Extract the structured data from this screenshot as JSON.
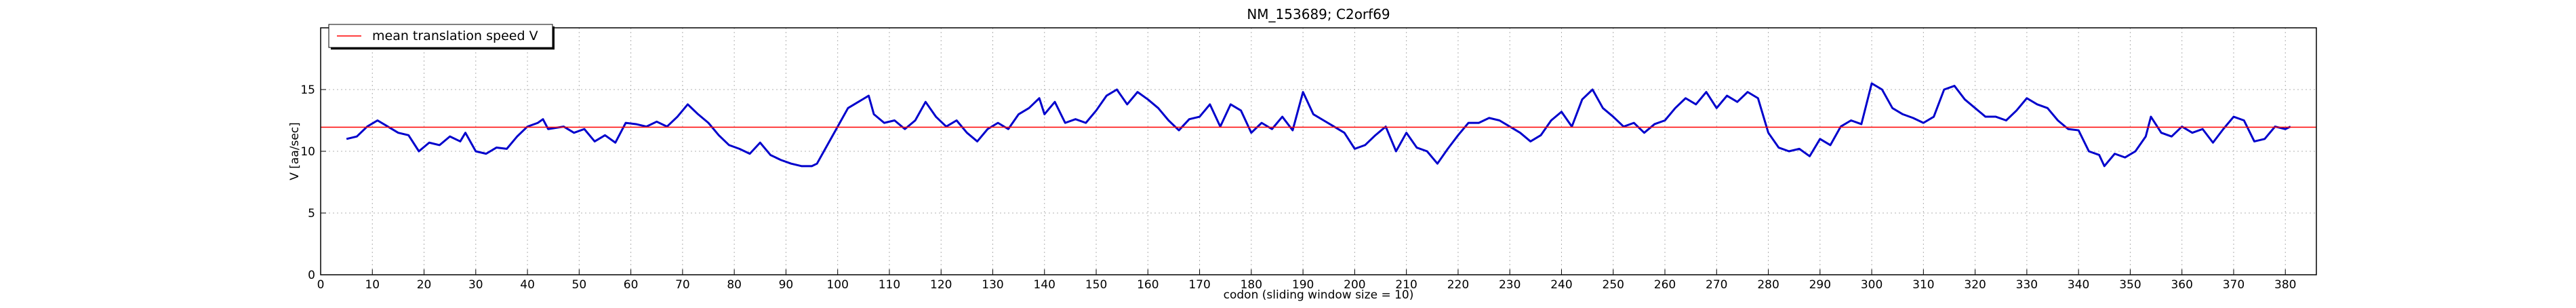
{
  "chart_data": {
    "type": "line",
    "title": "NM_153689; C2orf69",
    "x_label": "codon  (sliding window size = 10)",
    "y_label": "V [aa/sec]",
    "xlim": [
      0,
      386
    ],
    "ylim": [
      0,
      20
    ],
    "xticks": [
      0,
      10,
      20,
      30,
      40,
      50,
      60,
      70,
      80,
      90,
      100,
      110,
      120,
      130,
      140,
      150,
      160,
      170,
      180,
      190,
      200,
      210,
      220,
      230,
      240,
      250,
      260,
      270,
      280,
      290,
      300,
      310,
      320,
      330,
      340,
      350,
      360,
      370,
      380
    ],
    "yticks": [
      0,
      5,
      10,
      15
    ],
    "grid": true,
    "legend": "upper left",
    "x": [
      5,
      7,
      9,
      11,
      13,
      15,
      17,
      19,
      21,
      23,
      25,
      27,
      28,
      30,
      32,
      34,
      36,
      38,
      40,
      42,
      43,
      44,
      47,
      49,
      51,
      53,
      55,
      57,
      59,
      61,
      63,
      65,
      67,
      69,
      71,
      73,
      75,
      77,
      79,
      81,
      83,
      85,
      87,
      89,
      91,
      93,
      95,
      96,
      98,
      100,
      102,
      104,
      106,
      107,
      109,
      111,
      113,
      115,
      117,
      119,
      121,
      123,
      125,
      127,
      129,
      131,
      133,
      135,
      137,
      139,
      140,
      142,
      144,
      146,
      148,
      150,
      152,
      154,
      156,
      158,
      160,
      162,
      164,
      166,
      168,
      170,
      172,
      174,
      176,
      178,
      180,
      182,
      184,
      186,
      188,
      190,
      192,
      194,
      196,
      198,
      200,
      202,
      204,
      206,
      208,
      210,
      212,
      214,
      216,
      218,
      220,
      222,
      224,
      226,
      228,
      230,
      232,
      234,
      236,
      238,
      240,
      242,
      244,
      246,
      248,
      250,
      252,
      254,
      256,
      258,
      260,
      262,
      264,
      266,
      268,
      270,
      272,
      274,
      276,
      278,
      280,
      282,
      284,
      286,
      288,
      290,
      292,
      294,
      296,
      298,
      300,
      302,
      304,
      306,
      308,
      310,
      312,
      314,
      316,
      318,
      320,
      322,
      324,
      326,
      328,
      330,
      332,
      334,
      336,
      338,
      340,
      342,
      344,
      345,
      347,
      349,
      351,
      353,
      354,
      356,
      358,
      360,
      362,
      364,
      366,
      368,
      370,
      372,
      374,
      376,
      378,
      380,
      381
    ],
    "series": [
      {
        "color": "#0000cc",
        "values": [
          11,
          11.2,
          12,
          12.5,
          12,
          11.5,
          11.3,
          10,
          10.7,
          10.5,
          11.2,
          10.8,
          11.5,
          10,
          9.8,
          10.3,
          10.2,
          11.2,
          12,
          12.3,
          12.6,
          11.8,
          12,
          11.5,
          11.8,
          10.8,
          11.3,
          10.7,
          12.3,
          12.2,
          12,
          12.4,
          12,
          12.8,
          13.8,
          13,
          12.3,
          11.3,
          10.5,
          10.2,
          9.8,
          10.7,
          9.7,
          9.3,
          9,
          8.8,
          8.8,
          9,
          10.5,
          12,
          13.5,
          14,
          14.5,
          13,
          12.3,
          12.5,
          11.8,
          12.5,
          14,
          12.8,
          12,
          12.5,
          11.5,
          10.8,
          11.8,
          12.3,
          11.8,
          13,
          13.5,
          14.3,
          13,
          14,
          12.3,
          12.6,
          12.3,
          13.3,
          14.5,
          15,
          13.8,
          14.8,
          14.2,
          13.5,
          12.5,
          11.7,
          12.6,
          12.8,
          13.8,
          12,
          13.8,
          13.3,
          11.5,
          12.3,
          11.8,
          12.8,
          11.7,
          14.8,
          13,
          12.5,
          12,
          11.5,
          10.2,
          10.5,
          11.3,
          12,
          10,
          11.5,
          10.3,
          10,
          9,
          10.2,
          11.3,
          12.3,
          12.3,
          12.7,
          12.5,
          12,
          11.5,
          10.8,
          11.3,
          12.5,
          13.2,
          12,
          14.2,
          15,
          13.5,
          12.8,
          12,
          12.3,
          11.5,
          12.2,
          12.5,
          13.5,
          14.3,
          13.8,
          14.8,
          13.5,
          14.5,
          14,
          14.8,
          14.3,
          11.5,
          10.3,
          10,
          10.2,
          9.6,
          11,
          10.5,
          12,
          12.5,
          12.2,
          15.5,
          15,
          13.5,
          13,
          12.7,
          12.3,
          12.8,
          15,
          15.3,
          14.2,
          13.5,
          12.8,
          12.8,
          12.5,
          13.3,
          14.3,
          13.8,
          13.5,
          12.5,
          11.8,
          11.7,
          10,
          9.7,
          8.8,
          9.8,
          9.5,
          10,
          11.2,
          12.8,
          11.5,
          11.2,
          12,
          11.5,
          11.8,
          10.7,
          11.8,
          12.8,
          12.5,
          10.8,
          11,
          12,
          11.8,
          12
        ]
      }
    ],
    "reference_line": {
      "name": "mean translation speed V",
      "color": "#ff0000",
      "value": 11.95
    }
  }
}
